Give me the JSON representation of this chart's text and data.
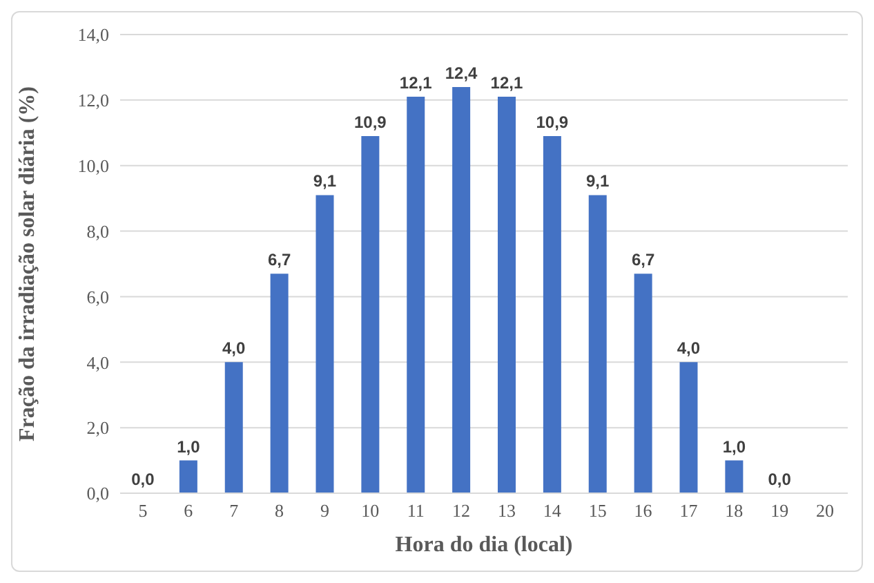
{
  "chart_data": {
    "type": "bar",
    "xlabel": "Hora do dia (local)",
    "ylabel": "Fração da irradiação solar diária (%)",
    "categories": [
      "5",
      "6",
      "7",
      "8",
      "9",
      "10",
      "11",
      "12",
      "13",
      "14",
      "15",
      "16",
      "17",
      "18",
      "19",
      "20"
    ],
    "values": [
      0.0,
      1.0,
      4.0,
      6.7,
      9.1,
      10.9,
      12.1,
      12.4,
      12.1,
      10.9,
      9.1,
      6.7,
      4.0,
      1.0,
      0.0,
      null
    ],
    "value_labels": [
      "0,0",
      "1,0",
      "4,0",
      "6,7",
      "9,1",
      "10,9",
      "12,1",
      "12,4",
      "12,1",
      "10,9",
      "9,1",
      "6,7",
      "4,0",
      "1,0",
      "0,0",
      null
    ],
    "color": "#4472c4",
    "ylim": [
      0,
      14
    ],
    "yticks": [
      {
        "value": 0,
        "label": "0,0"
      },
      {
        "value": 2,
        "label": "2,0"
      },
      {
        "value": 4,
        "label": "4,0"
      },
      {
        "value": 6,
        "label": "6,0"
      },
      {
        "value": 8,
        "label": "8,0"
      },
      {
        "value": 10,
        "label": "10,0"
      },
      {
        "value": 12,
        "label": "12,0"
      },
      {
        "value": 14,
        "label": "14,0"
      }
    ],
    "grid": "y",
    "legend": false
  }
}
